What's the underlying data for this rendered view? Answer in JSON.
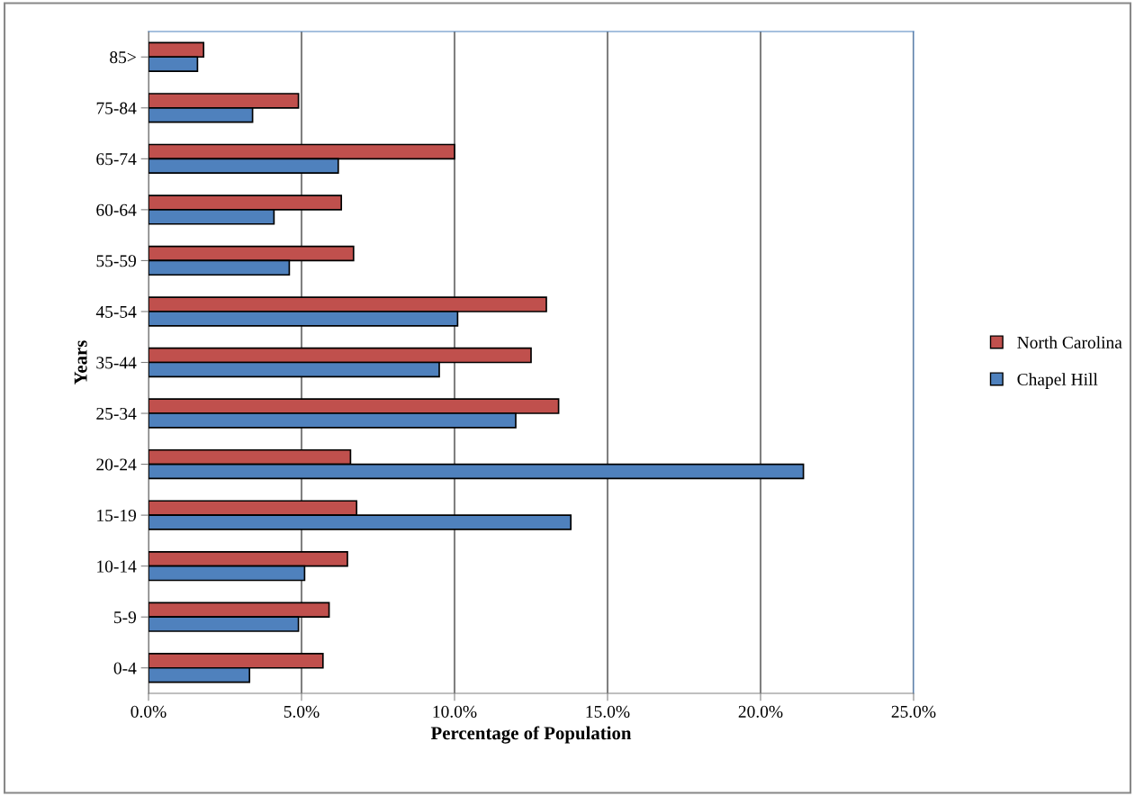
{
  "chart_data": {
    "type": "bar",
    "orientation": "horizontal",
    "xlabel": "Percentage of Population",
    "ylabel": "Years",
    "categories": [
      "85>",
      "75-84",
      "65-74",
      "60-64",
      "55-59",
      "45-54",
      "35-44",
      "25-34",
      "20-24",
      "15-19",
      "10-14",
      "5-9",
      "0-4"
    ],
    "series": [
      {
        "name": "North Carolina",
        "color": "#c0504d",
        "values": [
          1.8,
          4.9,
          10.0,
          6.3,
          6.7,
          13.0,
          12.5,
          13.4,
          6.6,
          6.8,
          6.5,
          5.9,
          5.7
        ]
      },
      {
        "name": "Chapel Hill",
        "color": "#4f81bd",
        "values": [
          1.6,
          3.4,
          6.2,
          4.1,
          4.6,
          10.1,
          9.5,
          12.0,
          21.4,
          13.8,
          5.1,
          4.9,
          3.3
        ]
      }
    ],
    "xlim": [
      0,
      25
    ],
    "xticks": [
      {
        "value": 0,
        "label": "0.0%"
      },
      {
        "value": 5,
        "label": "5.0%"
      },
      {
        "value": 10,
        "label": "10.0%"
      },
      {
        "value": 15,
        "label": "15.0%"
      },
      {
        "value": 20,
        "label": "20.0%"
      },
      {
        "value": 25,
        "label": "25.0%"
      }
    ],
    "grid": "x",
    "legend": "right"
  }
}
